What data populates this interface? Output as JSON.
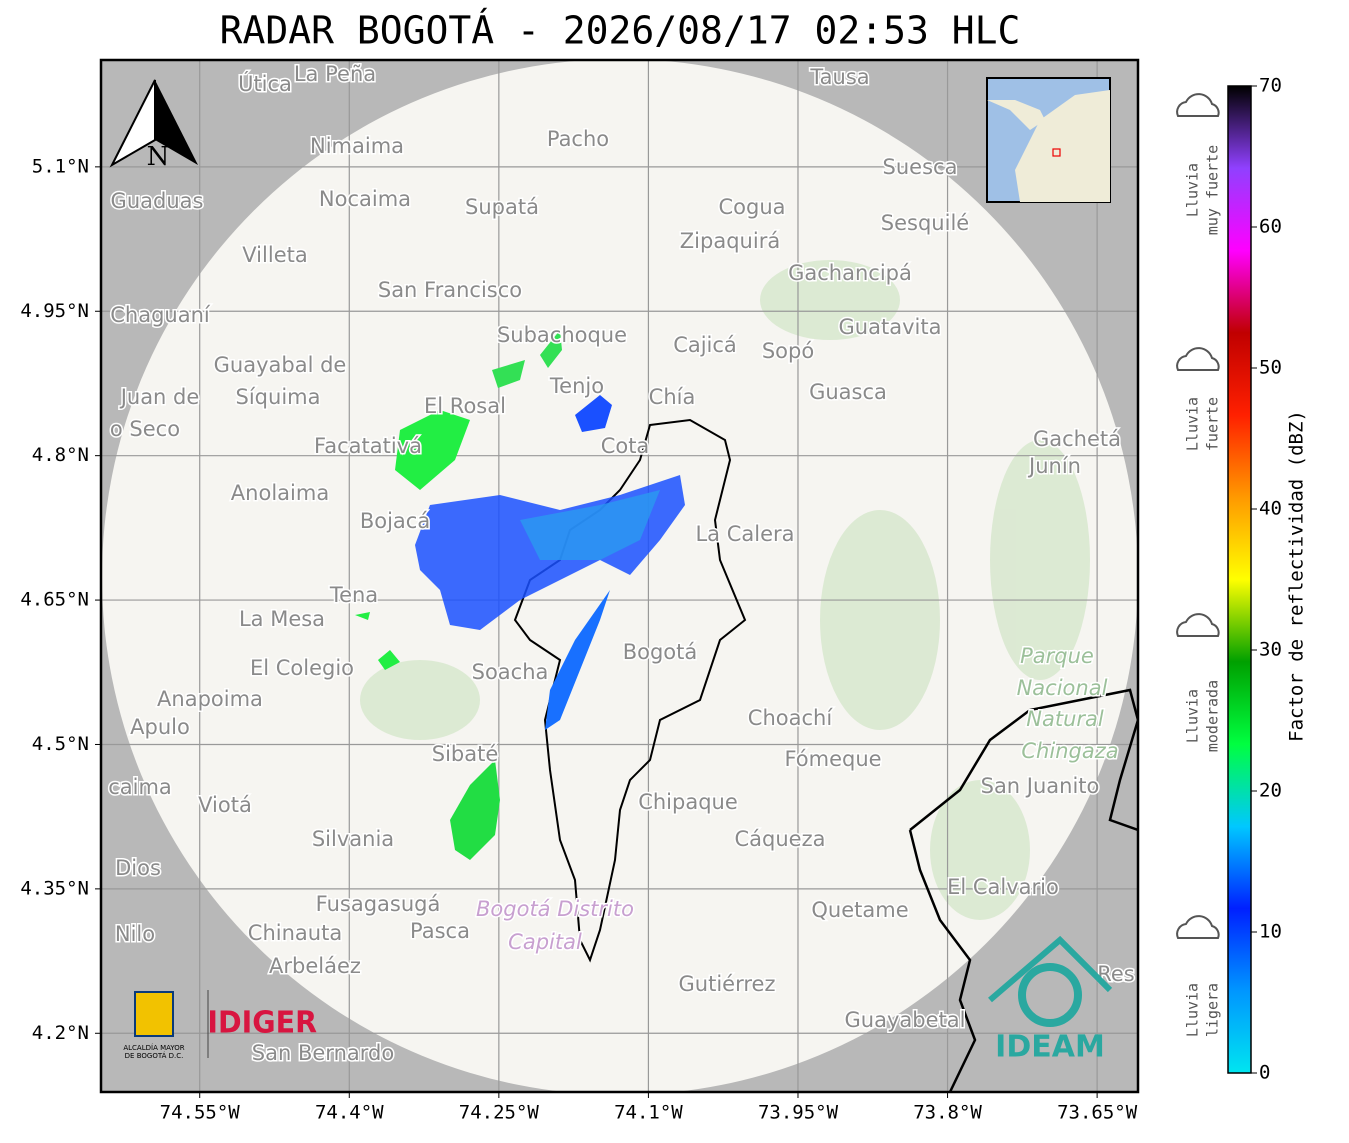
{
  "title": "RADAR BOGOTÁ - 2026/08/17 02:53 HLC",
  "map": {
    "xlim": [
      -74.649,
      -73.609
    ],
    "ylim": [
      4.139,
      5.211
    ],
    "grid": true,
    "xticks": [
      {
        "value": -74.55,
        "label": "74.55°W"
      },
      {
        "value": -74.4,
        "label": "74.4°W"
      },
      {
        "value": -74.25,
        "label": "74.25°W"
      },
      {
        "value": -74.1,
        "label": "74.1°W"
      },
      {
        "value": -73.95,
        "label": "73.95°W"
      },
      {
        "value": -73.8,
        "label": "73.8°W"
      },
      {
        "value": -73.65,
        "label": "73.65°W"
      }
    ],
    "yticks": [
      {
        "value": 4.2,
        "label": "4.2°N"
      },
      {
        "value": 4.35,
        "label": "4.35°N"
      },
      {
        "value": 4.5,
        "label": "4.5°N"
      },
      {
        "value": 4.65,
        "label": "4.65°N"
      },
      {
        "value": 4.8,
        "label": "4.8°N"
      },
      {
        "value": 4.95,
        "label": "4.95°N"
      },
      {
        "value": 5.1,
        "label": "5.1°N"
      }
    ],
    "north_label": "N",
    "places": [
      "Útica",
      "La Peña",
      "Tausa",
      "Pacho",
      "Nimaima",
      "Guaduas",
      "Nocaima",
      "Supatá",
      "Cogua",
      "Suesca",
      "Zipaquirá",
      "Sesquilé",
      "Villeta",
      "Gachancipá",
      "San Francisco",
      "Chaguaní",
      "Subachoque",
      "Cajicá",
      "Sopó",
      "Guatavita",
      "Guayabal de",
      "Síquima",
      "Juan de",
      "o Seco",
      "Tenjo",
      "Chía",
      "El Rosal",
      "Guasca",
      "Facatativá",
      "Cota",
      "Gachetá",
      "Junín",
      "Anolaima",
      "Bojacá",
      "La Calera",
      "Tena",
      "La Mesa",
      "El Colegio",
      "Bogotá",
      "Soacha",
      "Anapoima",
      "Apulo",
      "Choachí",
      "Fómeque",
      "Sibaté",
      "San Juanito",
      "caima",
      "Viotá",
      "Chipaque",
      "Silvania",
      "Cáqueza",
      "Dios",
      "El Calvario",
      "Fusagasugá",
      "Quetame",
      "Nilo",
      "Chinauta",
      "Pasca",
      "Arbeláez",
      "Res",
      "Gutiérrez",
      "Guayabetal",
      "San Bernardo"
    ],
    "park": [
      "Parque",
      "Nacional",
      "Natural",
      "Chingaza"
    ],
    "district": [
      "Bogotá Distrito",
      "Capital"
    ]
  },
  "colorbar": {
    "label": "Factor de reflectividad (dBZ)",
    "lim": [
      0,
      70
    ],
    "ticks": [
      0,
      10,
      20,
      30,
      40,
      50,
      60,
      70
    ],
    "colors": [
      "#00e5f0",
      "#0096ff",
      "#0020ff",
      "#00c8ff",
      "#00ff40",
      "#00a000",
      "#ffff00",
      "#ff9900",
      "#ff2000",
      "#c00000",
      "#ff00ff",
      "#9040ff",
      "#000000"
    ]
  },
  "legend": [
    {
      "lines": [
        "Lluvia",
        "muy fuerte"
      ]
    },
    {
      "lines": [
        "Lluvia",
        "fuerte"
      ]
    },
    {
      "lines": [
        "Lluvia",
        "moderada"
      ]
    },
    {
      "lines": [
        "Lluvia",
        "ligera"
      ]
    }
  ],
  "logos": {
    "alcaldia": [
      "ALCALDÍA MAYOR",
      "DE BOGOTÁ D.C."
    ],
    "idiger": "IDIGER",
    "ideam": "IDEAM"
  }
}
